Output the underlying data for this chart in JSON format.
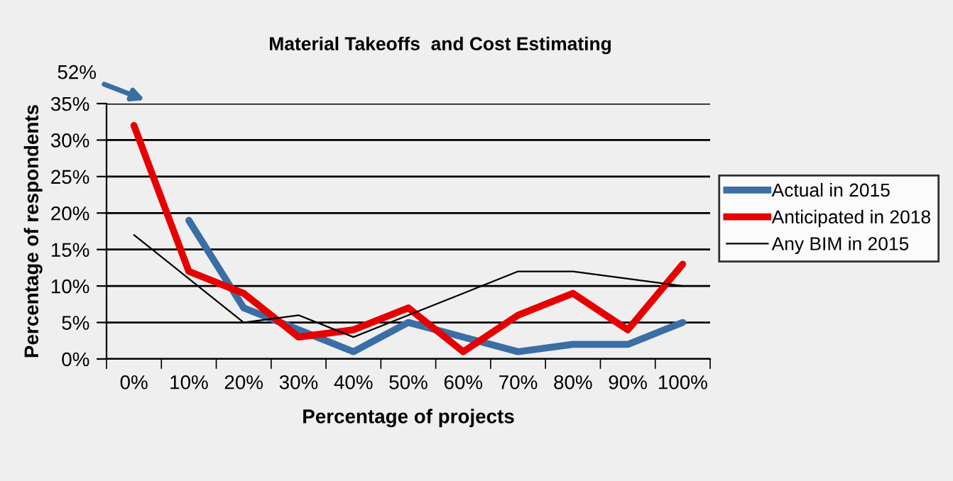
{
  "chart_data": {
    "type": "line",
    "title": "Material Takeoffs  and Cost Estimating",
    "categories": [
      "0%",
      "10%",
      "20%",
      "30%",
      "40%",
      "50%",
      "60%",
      "70%",
      "80%",
      "90%",
      "100%"
    ],
    "series": [
      {
        "name": "Actual in 2015",
        "color": "#3a6ea5",
        "values": [
          null,
          19,
          7,
          4,
          1,
          5,
          3,
          1,
          2,
          2,
          5
        ]
      },
      {
        "name": "Anticipated in 2018",
        "color": "#e60000",
        "values": [
          32,
          12,
          9,
          3,
          4,
          7,
          1,
          6,
          9,
          4,
          13
        ]
      },
      {
        "name": "Any BIM in 2015",
        "color": "#000000",
        "values": [
          17,
          11,
          5,
          6,
          3,
          6,
          9,
          12,
          12,
          11,
          10
        ]
      }
    ],
    "annotations": [
      "52%"
    ],
    "xlabel": "Percentage of projects",
    "ylabel": "Percentage of respondents",
    "ylim": [
      0,
      35
    ],
    "yticks": [
      {
        "value": 0,
        "label": "0%"
      },
      {
        "value": 5,
        "label": "5%"
      },
      {
        "value": 10,
        "label": "10%"
      },
      {
        "value": 15,
        "label": "15%"
      },
      {
        "value": 20,
        "label": "20%"
      },
      {
        "value": 25,
        "label": "25%"
      },
      {
        "value": 30,
        "label": "30%"
      },
      {
        "value": 35,
        "label": "35%"
      }
    ],
    "grid": "y",
    "legend": "right"
  }
}
